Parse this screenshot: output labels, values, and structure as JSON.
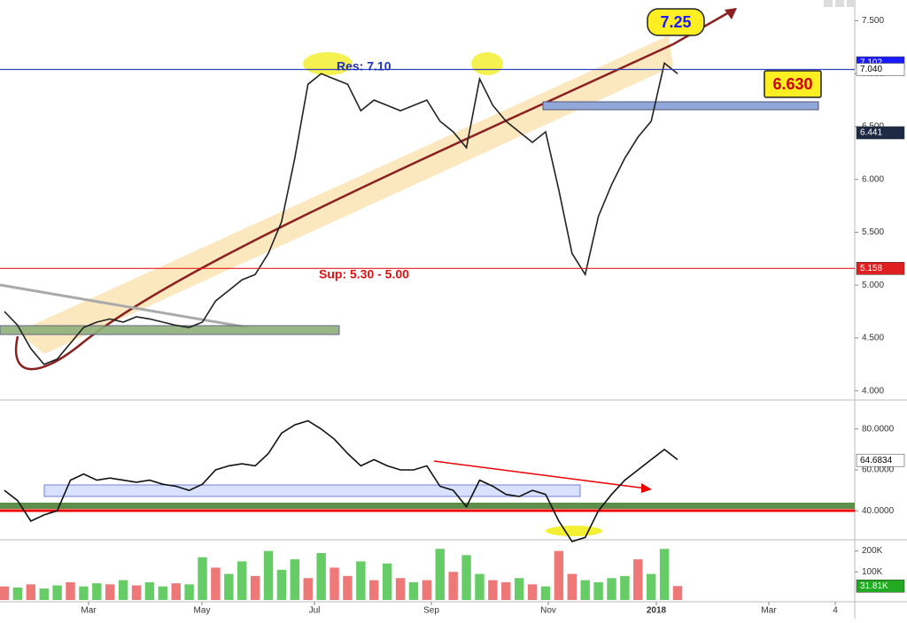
{
  "chart_data": [
    {
      "type": "line",
      "panel": "price",
      "series": [
        {
          "color": "#222",
          "values": [
            4.75,
            4.62,
            4.4,
            4.25,
            4.3,
            4.45,
            4.6,
            4.65,
            4.68,
            4.65,
            4.7,
            4.68,
            4.65,
            4.62,
            4.6,
            4.65,
            4.85,
            4.95,
            5.05,
            5.1,
            5.3,
            5.6,
            6.2,
            6.9,
            7.0,
            6.95,
            6.9,
            6.65,
            6.75,
            6.7,
            6.65,
            6.7,
            6.75,
            6.55,
            6.45,
            6.3,
            6.95,
            6.7,
            6.55,
            6.45,
            6.35,
            6.45,
            5.9,
            5.3,
            5.1,
            5.65,
            5.95,
            6.2,
            6.4,
            6.55,
            7.1,
            7.0
          ]
        }
      ],
      "ylim": [
        3.93,
        7.63
      ],
      "yticks": [
        {
          "value": 4,
          "label": "4.000"
        },
        {
          "value": 4.5,
          "label": "4.500"
        },
        {
          "value": 5,
          "label": "5.000"
        },
        {
          "value": 5.5,
          "label": "5.500"
        },
        {
          "value": 6,
          "label": "6.000"
        },
        {
          "value": 6.5,
          "label": "6.500"
        },
        {
          "value": 7,
          "label": "7.000"
        },
        {
          "value": 7.5,
          "label": "7.500"
        }
      ],
      "markers": [
        {
          "value": 7.102,
          "label": "7.102",
          "color": "#1a1aff",
          "line": false
        },
        {
          "value": 7.04,
          "label": "7.040",
          "color": "#ffffff",
          "line": true,
          "line_color": "#3344bb"
        },
        {
          "value": 6.441,
          "label": "6.441",
          "color": "#1e2a44",
          "line": false
        },
        {
          "value": 5.158,
          "label": "5.158",
          "color": "#e02020",
          "line": true,
          "line_color": "#e02020"
        }
      ],
      "annotations": [
        "7.25",
        "6.630",
        "Res: 7.10",
        "Sup: 5.30 - 5.00"
      ]
    },
    {
      "type": "line",
      "panel": "rsi",
      "series": [
        {
          "color": "#111",
          "values": [
            50,
            45,
            35,
            38,
            40,
            55,
            58,
            55,
            56,
            55,
            54,
            55,
            53,
            52,
            50,
            53,
            60,
            62,
            63,
            62,
            68,
            78,
            82,
            84,
            80,
            75,
            68,
            62,
            65,
            62,
            60,
            60,
            62,
            52,
            50,
            42,
            55,
            52,
            48,
            47,
            50,
            48,
            35,
            25,
            27,
            40,
            48,
            55,
            60,
            65,
            70,
            65
          ]
        }
      ],
      "ylim": [
        26.7,
        93.3
      ],
      "yticks": [
        {
          "value": 40,
          "label": "40.0000"
        },
        {
          "value": 60,
          "label": "60.0000"
        },
        {
          "value": 80,
          "label": "80.0000"
        }
      ],
      "markers": [
        {
          "value": 64.6834,
          "label": "64.6834",
          "color": "#ffffff"
        }
      ]
    },
    {
      "type": "bar",
      "panel": "volume",
      "values": [
        30000,
        25000,
        40000,
        20000,
        35000,
        50000,
        30000,
        45000,
        40000,
        60000,
        35000,
        50000,
        30000,
        45000,
        40000,
        170000,
        120000,
        90000,
        150000,
        80000,
        200000,
        110000,
        160000,
        70000,
        190000,
        120000,
        80000,
        150000,
        60000,
        140000,
        70000,
        50000,
        60000,
        210000,
        100000,
        180000,
        90000,
        60000,
        50000,
        70000,
        40000,
        30000,
        200000,
        90000,
        60000,
        50000,
        70000,
        80000,
        160000,
        90000,
        210000,
        31810
      ],
      "colors": [
        "#e77",
        "#6c6",
        "#e77",
        "#6c6",
        "#6c6",
        "#e77",
        "#6c6",
        "#6c6",
        "#e77",
        "#6c6",
        "#e77",
        "#6c6",
        "#6c6",
        "#e77",
        "#6c6",
        "#6c6",
        "#e77",
        "#6c6",
        "#6c6",
        "#e77",
        "#6c6",
        "#6c6",
        "#6c6",
        "#e77",
        "#6c6",
        "#e77",
        "#e77",
        "#6c6",
        "#e77",
        "#6c6",
        "#e77",
        "#6c6",
        "#e77",
        "#6c6",
        "#e77",
        "#6c6",
        "#6c6",
        "#e77",
        "#e77",
        "#6c6",
        "#e77",
        "#6c6",
        "#e77",
        "#e77",
        "#6c6",
        "#6c6",
        "#6c6",
        "#6c6",
        "#e77",
        "#6c6",
        "#6c6",
        "#e77"
      ],
      "ylim": [
        -35000,
        245000
      ],
      "yticks": [
        {
          "value": 100000,
          "label": "100K"
        },
        {
          "value": 200000,
          "label": "200K"
        }
      ],
      "markers": [
        {
          "value": 31810,
          "label": "31.81K",
          "color": "#22aa22"
        }
      ]
    }
  ],
  "x_axis_labels": [
    "Mar",
    "May",
    "Jul",
    "Sep",
    "Nov",
    "2018",
    "Mar",
    "4"
  ]
}
